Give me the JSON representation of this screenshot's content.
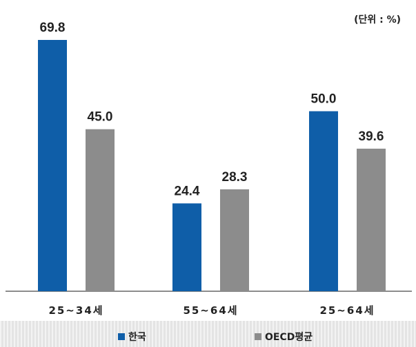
{
  "unit_note": "(단위 : %)",
  "chart_data": {
    "type": "bar",
    "categories": [
      "25~34세",
      "55~64세",
      "25~64세"
    ],
    "series": [
      {
        "name": "한국",
        "values": [
          69.8,
          24.4,
          50.0
        ],
        "labels": [
          "69.8",
          "24.4",
          "50.0"
        ],
        "color": "#0f5ea8"
      },
      {
        "name": "OECD평균",
        "values": [
          45.0,
          28.3,
          39.6
        ],
        "labels": [
          "45.0",
          "28.3",
          "39.6"
        ],
        "color": "#8c8c8c"
      }
    ],
    "ylim": [
      0,
      69.8
    ],
    "grid": false,
    "legend": "bottom"
  }
}
